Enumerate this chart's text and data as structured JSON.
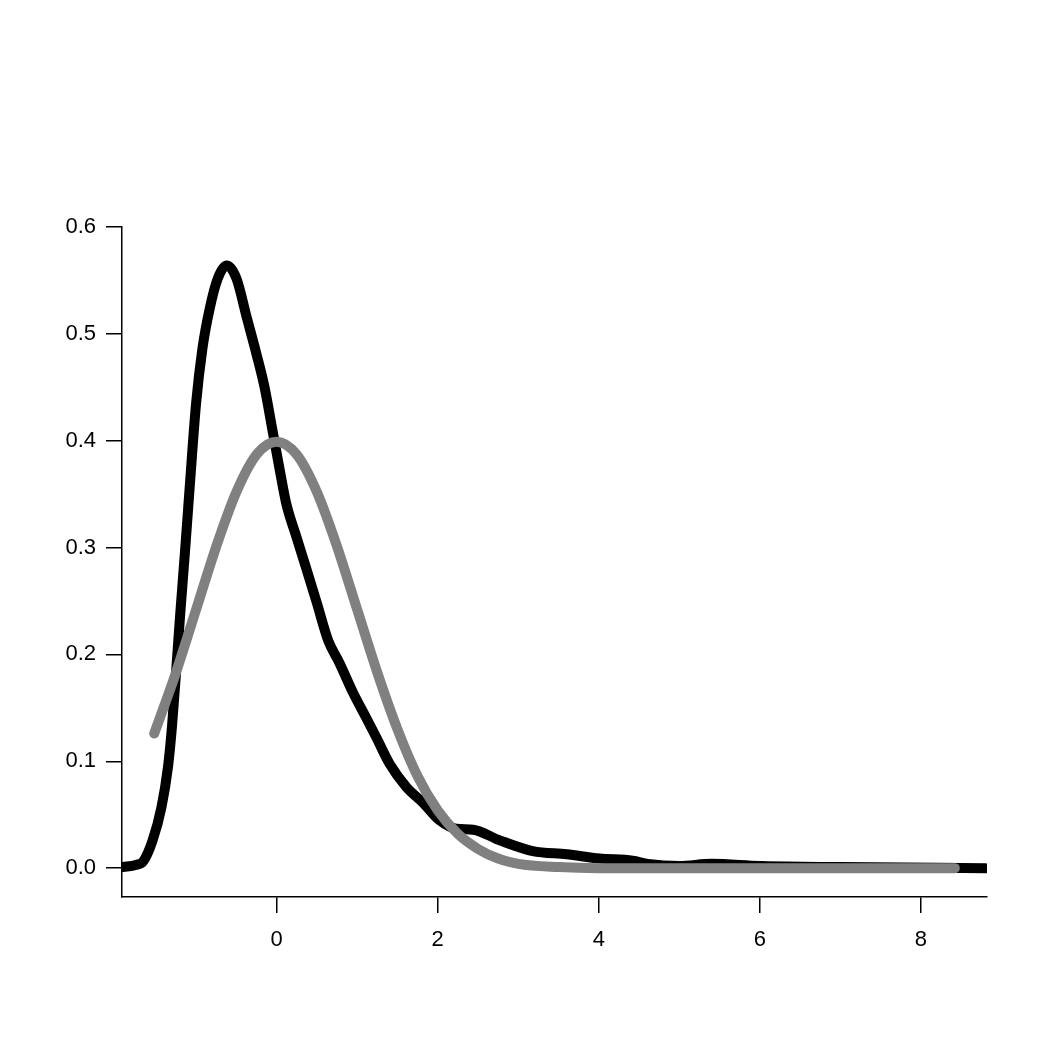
{
  "chart_data": {
    "type": "line",
    "xlim": [
      -1.92,
      8.82
    ],
    "ylim": [
      -0.027,
      0.6
    ],
    "xticks": [
      0,
      2,
      4,
      6,
      8
    ],
    "yticks": [
      {
        "value": 0,
        "label": "0.0"
      },
      0.1,
      0.2,
      0.3,
      0.4,
      0.5,
      0.6
    ],
    "grid": false,
    "legend": false,
    "marker": "none",
    "line_style": "solid",
    "series": [
      {
        "color": "#000000",
        "x": [
          -1.91,
          -1.75,
          -1.66,
          -1.54,
          -1.43,
          -1.35,
          -1.3,
          -1.25,
          -1.2,
          -1.14,
          -1.08,
          -1,
          -0.92,
          -0.83,
          -0.73,
          -0.62,
          -0.5,
          -0.37,
          -0.25,
          -0.15,
          -0.05,
          0.04,
          0.12,
          0.25,
          0.37,
          0.5,
          0.64,
          0.78,
          0.95,
          1.11,
          1.24,
          1.4,
          1.61,
          1.82,
          2.02,
          2.23,
          2.44,
          2.77,
          3.18,
          3.6,
          4.01,
          4.42,
          4.61,
          5,
          5.4,
          6,
          7,
          8.8
        ],
        "values": [
          0.001,
          0.003,
          0.006,
          0.026,
          0.057,
          0.094,
          0.132,
          0.182,
          0.235,
          0.294,
          0.356,
          0.435,
          0.487,
          0.524,
          0.552,
          0.564,
          0.552,
          0.515,
          0.481,
          0.45,
          0.409,
          0.372,
          0.341,
          0.309,
          0.28,
          0.248,
          0.213,
          0.192,
          0.164,
          0.141,
          0.122,
          0.098,
          0.076,
          0.061,
          0.045,
          0.037,
          0.036,
          0.026,
          0.016,
          0.013,
          0.009,
          0.007,
          0.004,
          0.002,
          0.004,
          0.002,
          0.001,
          0
        ]
      },
      {
        "color": "#808080",
        "x": [
          -1.52,
          -1.25,
          -1,
          -0.75,
          -0.5,
          -0.25,
          0,
          0.25,
          0.5,
          0.75,
          1,
          1.25,
          1.5,
          1.75,
          2,
          2.25,
          2.5,
          2.75,
          3,
          3.5,
          4,
          5,
          6,
          7,
          8.42
        ],
        "values": [
          0.126,
          0.183,
          0.242,
          0.301,
          0.352,
          0.387,
          0.399,
          0.387,
          0.352,
          0.301,
          0.242,
          0.183,
          0.13,
          0.086,
          0.054,
          0.032,
          0.018,
          0.009,
          0.004,
          0.001,
          0,
          0,
          0,
          0,
          0
        ]
      }
    ]
  }
}
